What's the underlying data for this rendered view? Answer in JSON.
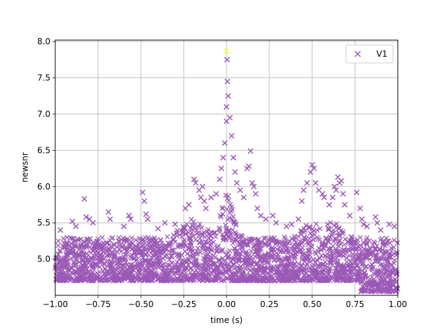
{
  "chart_data": {
    "type": "scatter",
    "title": "",
    "xlabel": "time (s)",
    "ylabel": "newsnr",
    "xlim": [
      -1.0,
      1.0
    ],
    "ylim": [
      4.5,
      8.02
    ],
    "xticks": [
      -1.0,
      -0.75,
      -0.5,
      -0.25,
      0.0,
      0.25,
      0.5,
      0.75,
      1.0
    ],
    "xtick_labels": [
      "−1.00",
      "−0.75",
      "−0.50",
      "−0.25",
      "0.00",
      "0.25",
      "0.50",
      "0.75",
      "1.00"
    ],
    "yticks": [
      5.0,
      5.5,
      6.0,
      6.5,
      7.0,
      7.5,
      8.0
    ],
    "ytick_labels": [
      "5.0",
      "5.5",
      "6.0",
      "6.5",
      "7.0",
      "7.5",
      "8.0"
    ],
    "grid": true,
    "legend_position": "top-right",
    "marker": "x",
    "series": [
      {
        "name": "V1",
        "color": "#9b59b6",
        "points": [
          [
            -0.83,
            5.83
          ],
          [
            -0.82,
            5.58
          ],
          [
            -0.8,
            5.55
          ],
          [
            -0.78,
            5.5
          ],
          [
            -0.69,
            5.65
          ],
          [
            -0.68,
            5.55
          ],
          [
            -0.57,
            5.6
          ],
          [
            -0.56,
            5.55
          ],
          [
            -0.49,
            5.92
          ],
          [
            -0.48,
            5.8
          ],
          [
            -0.47,
            5.62
          ],
          [
            -0.46,
            5.55
          ],
          [
            -0.36,
            5.5
          ],
          [
            -0.24,
            5.7
          ],
          [
            -0.22,
            5.75
          ],
          [
            -0.19,
            6.1
          ],
          [
            -0.18,
            6.05
          ],
          [
            -0.16,
            5.95
          ],
          [
            -0.15,
            5.85
          ],
          [
            -0.14,
            6.0
          ],
          [
            -0.13,
            5.8
          ],
          [
            -0.12,
            5.7
          ],
          [
            -0.09,
            5.85
          ],
          [
            -0.06,
            5.9
          ],
          [
            -0.04,
            6.1
          ],
          [
            -0.03,
            6.25
          ],
          [
            -0.02,
            6.4
          ],
          [
            -0.01,
            6.6
          ],
          [
            0.0,
            6.9
          ],
          [
            0.0,
            7.1
          ],
          [
            0.01,
            7.25
          ],
          [
            0.005,
            7.45
          ],
          [
            0.003,
            7.75
          ],
          [
            0.02,
            6.95
          ],
          [
            0.03,
            6.7
          ],
          [
            0.04,
            6.4
          ],
          [
            0.05,
            6.2
          ],
          [
            0.06,
            6.05
          ],
          [
            0.08,
            5.95
          ],
          [
            0.1,
            5.85
          ],
          [
            0.12,
            6.25
          ],
          [
            0.13,
            6.28
          ],
          [
            0.14,
            6.49
          ],
          [
            0.15,
            6.05
          ],
          [
            0.16,
            6.0
          ],
          [
            0.17,
            5.9
          ],
          [
            0.18,
            5.7
          ],
          [
            0.2,
            5.6
          ],
          [
            0.23,
            5.55
          ],
          [
            0.27,
            5.6
          ],
          [
            0.29,
            5.5
          ],
          [
            0.35,
            5.45
          ],
          [
            0.42,
            5.55
          ],
          [
            0.44,
            5.8
          ],
          [
            0.45,
            5.95
          ],
          [
            0.47,
            6.05
          ],
          [
            0.49,
            6.2
          ],
          [
            0.5,
            6.3
          ],
          [
            0.51,
            6.25
          ],
          [
            0.52,
            6.05
          ],
          [
            0.54,
            5.95
          ],
          [
            0.56,
            5.9
          ],
          [
            0.57,
            5.85
          ],
          [
            0.6,
            5.75
          ],
          [
            0.62,
            5.85
          ],
          [
            0.63,
            6.0
          ],
          [
            0.64,
            5.95
          ],
          [
            0.65,
            6.13
          ],
          [
            0.66,
            6.05
          ],
          [
            0.67,
            6.08
          ],
          [
            0.68,
            5.9
          ],
          [
            0.69,
            5.75
          ],
          [
            0.72,
            5.6
          ],
          [
            0.76,
            5.92
          ],
          [
            0.78,
            5.7
          ],
          [
            0.79,
            5.55
          ],
          [
            0.8,
            5.48
          ],
          [
            0.82,
            5.45
          ],
          [
            0.87,
            5.58
          ],
          [
            0.88,
            5.5
          ],
          [
            0.95,
            5.48
          ],
          [
            0.98,
            5.45
          ],
          [
            -0.97,
            5.4
          ],
          [
            -0.9,
            5.52
          ],
          [
            -0.88,
            5.45
          ],
          [
            -0.6,
            5.45
          ],
          [
            -0.4,
            5.42
          ],
          [
            -0.3,
            5.48
          ],
          [
            0.38,
            5.48
          ],
          [
            0.9,
            5.4
          ]
        ]
      }
    ],
    "highlight_points": [
      {
        "x": 0.0,
        "y": 7.87,
        "color": "#ffff33"
      }
    ]
  }
}
